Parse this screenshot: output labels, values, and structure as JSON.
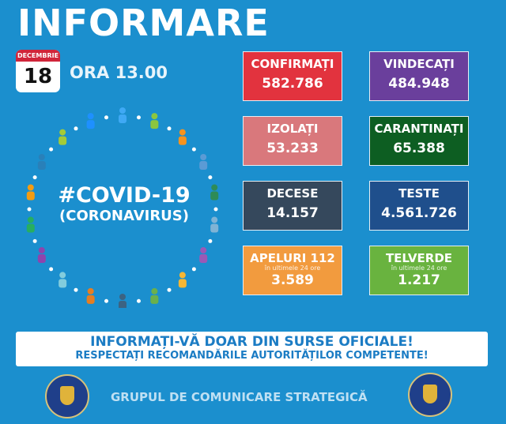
{
  "header": {
    "title": "INFORMARE",
    "calendar_month": "DECEMBRIE",
    "calendar_day": "18",
    "time": "ORA 13.00"
  },
  "center": {
    "hashtag": "#COVID-19",
    "subtitle": "(CORONAVIRUS)",
    "icon": "people-circle-icon"
  },
  "stats": [
    {
      "label": "CONFIRMAȚI",
      "value": "582.786",
      "color": "#e2333e"
    },
    {
      "label": "VINDECAȚI",
      "value": "484.948",
      "color": "#6a3f9c"
    },
    {
      "label": "IZOLAȚI",
      "value": "53.233",
      "color": "#d9787c"
    },
    {
      "label": "CARANTINAȚI",
      "value": "65.388",
      "color": "#0d5e22"
    },
    {
      "label": "DECESE",
      "value": "14.157",
      "color": "#35485c"
    },
    {
      "label": "TESTE",
      "value": "4.561.726",
      "color": "#1f4f8c"
    },
    {
      "label": "APELURI 112",
      "sub": "în ultimele 24 ore",
      "value": "3.589",
      "color": "#f29b3e"
    },
    {
      "label": "TELVERDE",
      "sub": "în ultimele 24 ore",
      "value": "1.217",
      "color": "#69b33f"
    }
  ],
  "banner": {
    "line1": "INFORMAȚI-VĂ DOAR DIN SURSE OFICIALE!",
    "line2": "RESPECTAȚI RECOMANDĂRILE AUTORITĂȚILOR COMPETENTE!"
  },
  "footer": {
    "text": "GRUPUL DE COMUNICARE STRATEGICĂ",
    "logo_left": "GUVERNUL ROMÂNIEI",
    "logo_right": "DEPARTAMENTUL PENTRU SITUAȚII DE URGENȚĂ M.A.I."
  }
}
